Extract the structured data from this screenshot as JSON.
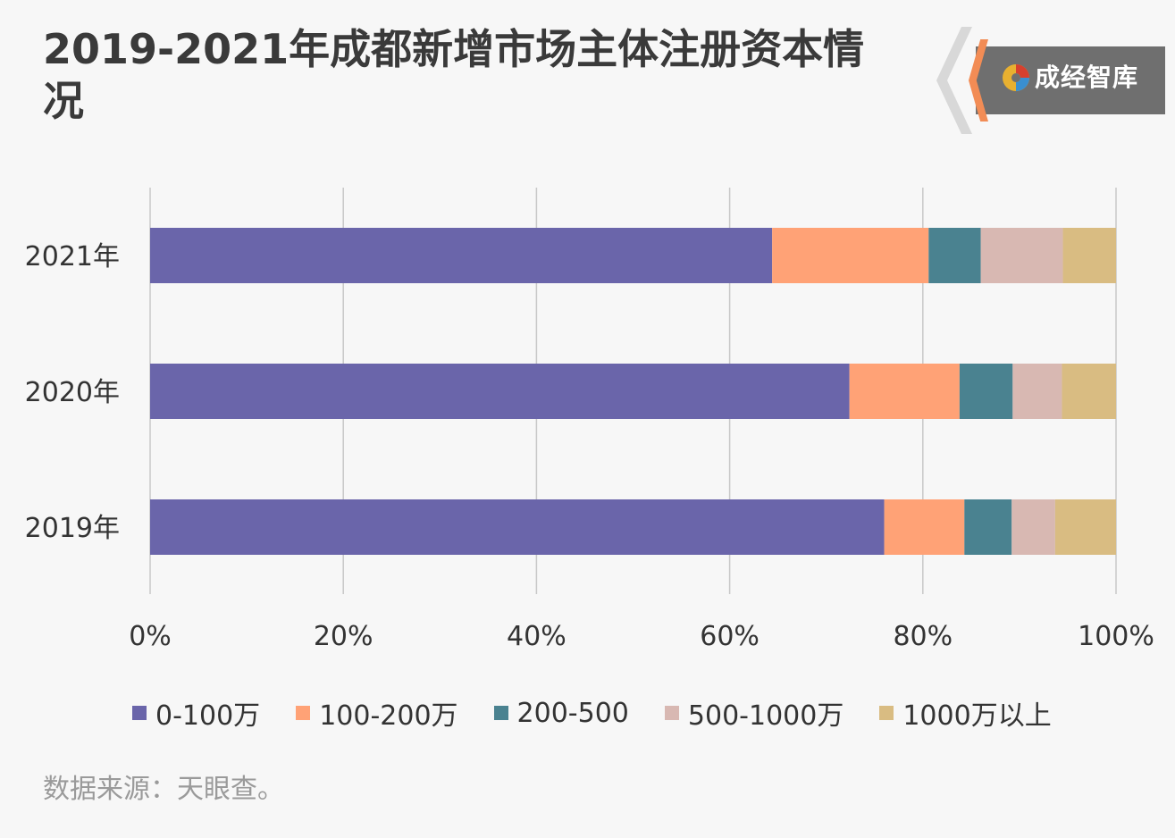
{
  "title": "2019-2021年成都新增市场主体注册资本情况",
  "brand": {
    "name": "成经智库",
    "logo_icon": "swirl-logo-icon",
    "accent": "#f28c55",
    "box_color": "#6f6f6f"
  },
  "source": "数据来源：天眼查。",
  "chart_data": {
    "type": "bar",
    "orientation": "horizontal",
    "stacked": true,
    "percent_stacked": true,
    "title": "2019-2021年成都新增市场主体注册资本情况",
    "categories": [
      "2021年",
      "2020年",
      "2019年"
    ],
    "series": [
      {
        "name": "0-100万",
        "color": "#6a65aa",
        "values": [
          64.4,
          72.4,
          76.0
        ]
      },
      {
        "name": "100-200万",
        "color": "#ffa276",
        "values": [
          16.2,
          11.4,
          8.3
        ]
      },
      {
        "name": "200-500",
        "color": "#4a8290",
        "values": [
          5.4,
          5.5,
          4.9
        ]
      },
      {
        "name": "500-1000万",
        "color": "#d8b8b2",
        "values": [
          8.5,
          5.1,
          4.5
        ]
      },
      {
        "name": "1000万以上",
        "color": "#d9bc82",
        "values": [
          5.5,
          5.6,
          6.3
        ]
      }
    ],
    "x_ticks": [
      "0%",
      "20%",
      "40%",
      "60%",
      "80%",
      "100%"
    ],
    "xlim": [
      0,
      100
    ],
    "grid": "vertical",
    "legend_position": "bottom"
  }
}
